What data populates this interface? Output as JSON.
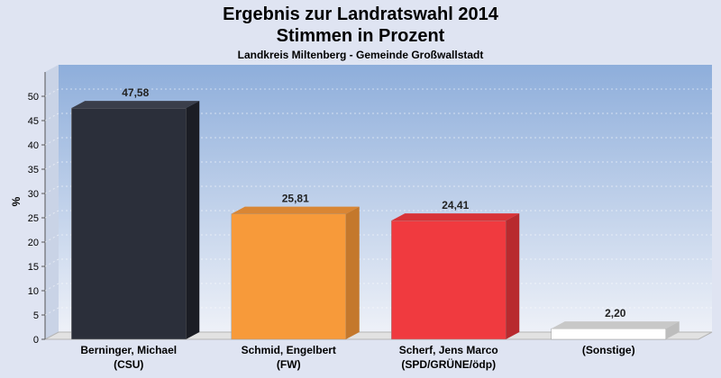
{
  "header": {
    "title": "Ergebnis zur Landratswahl 2014",
    "subtitle": "Stimmen in Prozent",
    "caption": "Landkreis Miltenberg - Gemeinde Großwallstadt"
  },
  "chart_data": {
    "type": "bar",
    "title": "Ergebnis zur Landratswahl 2014",
    "subtitle": "Stimmen in Prozent",
    "caption": "Landkreis Miltenberg - Gemeinde Großwallstadt",
    "ylabel": "%",
    "ylim": [
      0,
      55
    ],
    "yticks": [
      0,
      5,
      10,
      15,
      20,
      25,
      30,
      35,
      40,
      45,
      50
    ],
    "grid": true,
    "categories": [
      [
        "Berninger, Michael",
        "(CSU)"
      ],
      [
        "Schmid, Engelbert",
        "(FW)"
      ],
      [
        "Scherf, Jens Marco",
        "(SPD/GRÜNE/ödp)"
      ],
      [
        "(Sonstige)",
        ""
      ]
    ],
    "values": [
      47.58,
      25.81,
      24.41,
      2.2
    ],
    "value_labels": [
      "47,58",
      "25,81",
      "24,41",
      "2,20"
    ],
    "colors": [
      "#2b2f3a",
      "#f79a3a",
      "#f03a3f",
      "#ffffff"
    ],
    "side_colors": [
      "#1b1d24",
      "#c4782c",
      "#b82a2e",
      "#bdbdbd"
    ],
    "top_colors": [
      "#3a3e4a",
      "#d98634",
      "#d83338",
      "#c8c8c8"
    ]
  }
}
